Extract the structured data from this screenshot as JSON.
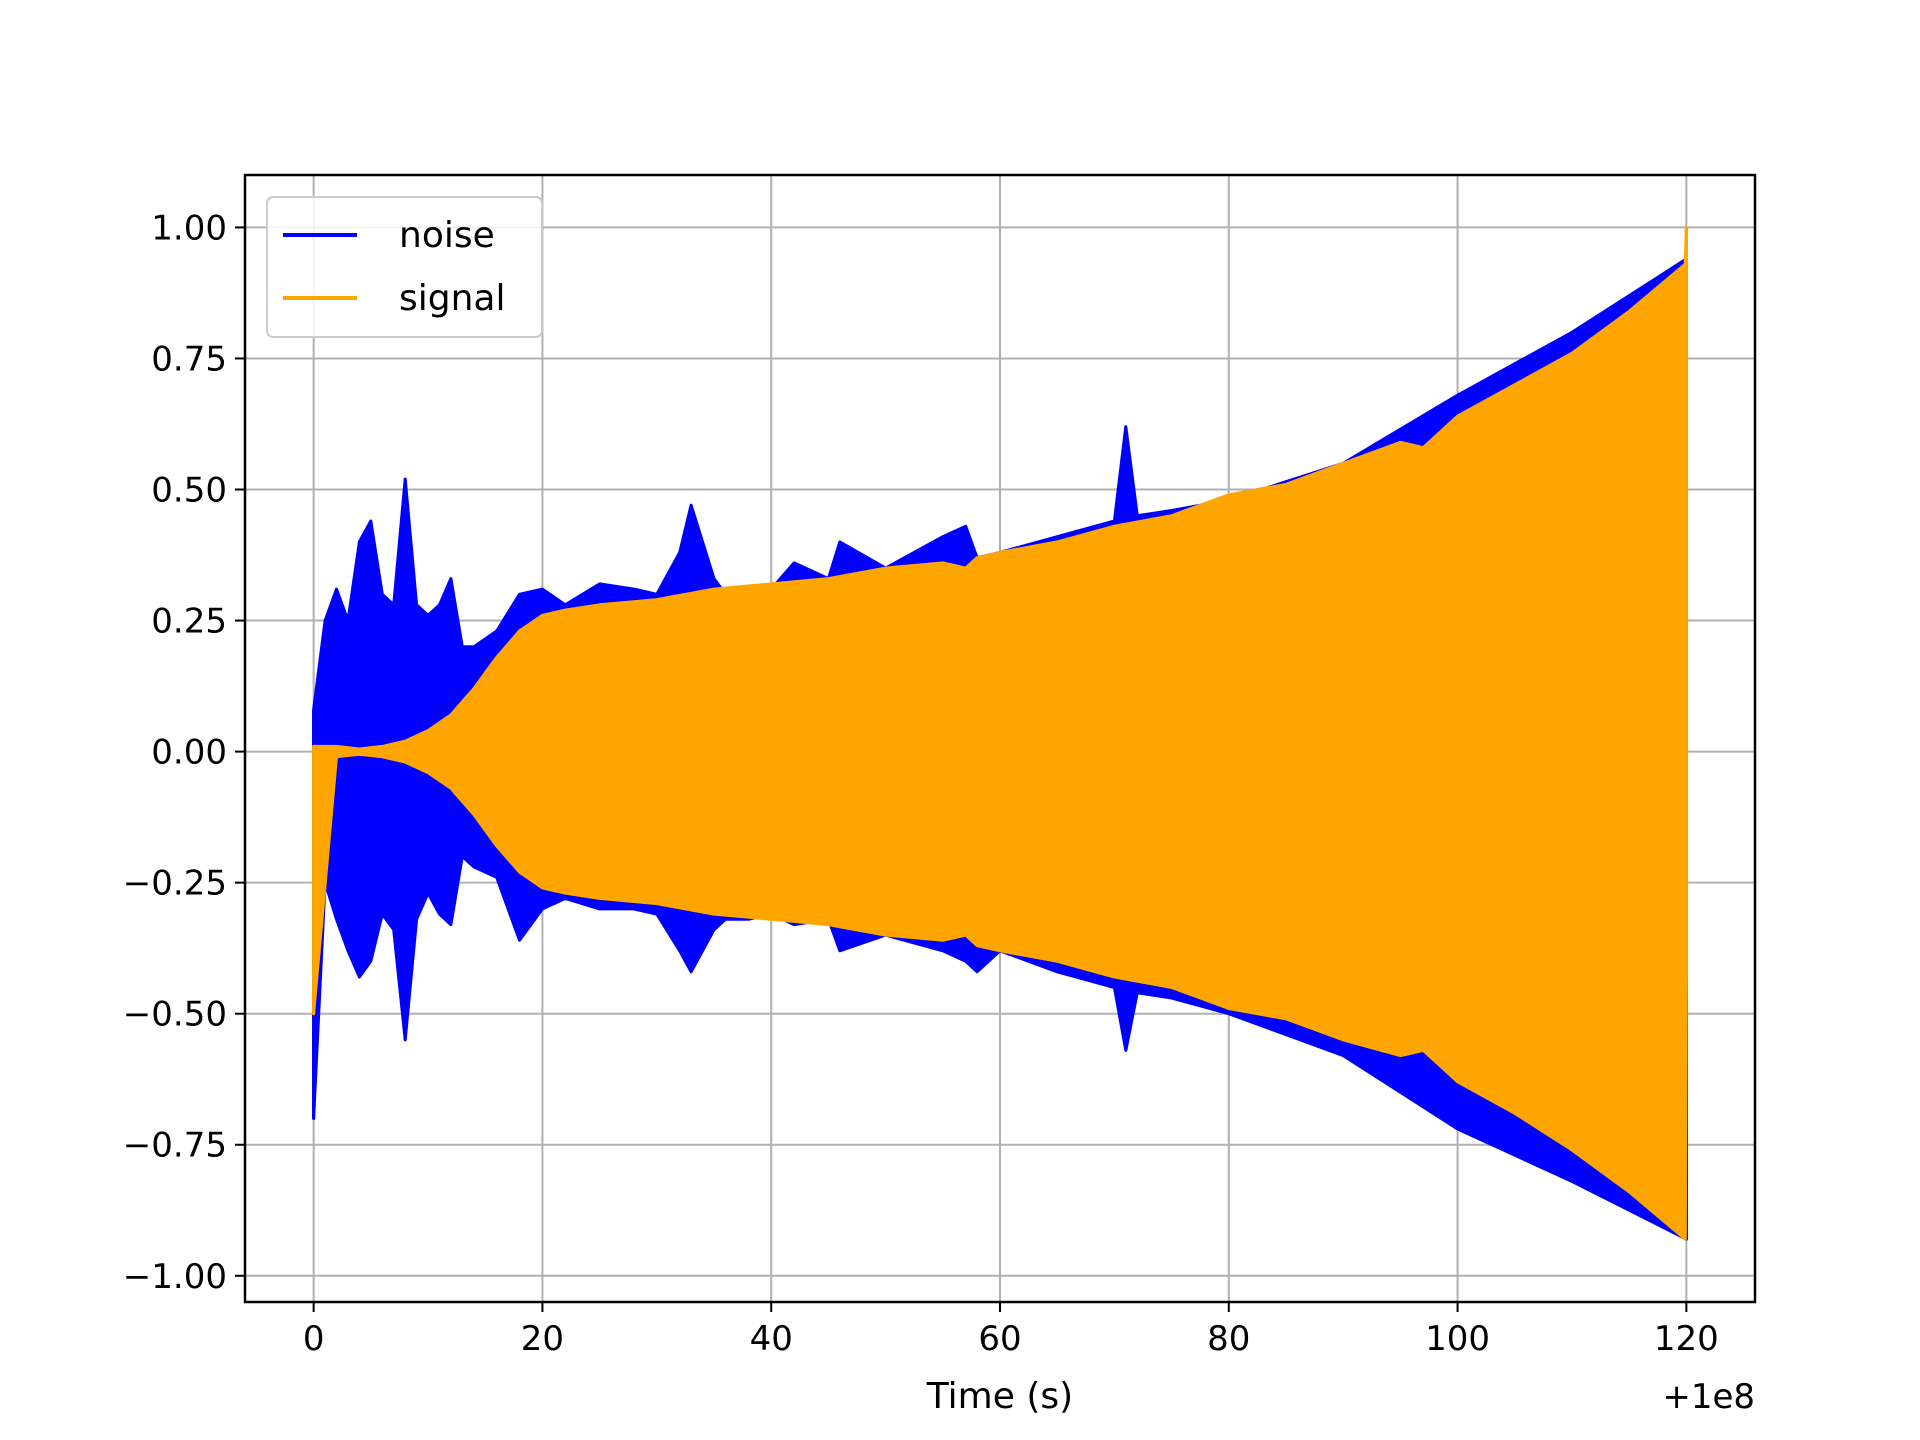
{
  "chart_data": {
    "type": "line",
    "xlabel": "Time (s)",
    "ylabel": "",
    "x_offset_label": "+1e8",
    "xlim": [
      -6,
      126
    ],
    "ylim": [
      -1.05,
      1.1
    ],
    "xticks": [
      0,
      20,
      40,
      60,
      80,
      100,
      120
    ],
    "xtick_labels": [
      "0",
      "20",
      "40",
      "60",
      "80",
      "100",
      "120"
    ],
    "yticks": [
      1.0,
      0.75,
      0.5,
      0.25,
      0.0,
      -0.25,
      -0.5,
      -0.75,
      -1.0
    ],
    "ytick_labels": [
      "1.00",
      "0.75",
      "0.50",
      "0.25",
      "0.00",
      "−0.25",
      "−0.50",
      "−0.75",
      "−1.00"
    ],
    "grid": true,
    "legend_position": "top-left",
    "series": [
      {
        "name": "noise",
        "color": "#0000ff",
        "envelope": {
          "x": [
            0,
            1,
            2,
            3,
            4,
            5,
            6,
            7,
            8,
            9,
            10,
            11,
            12,
            13,
            14,
            16,
            18,
            20,
            22,
            25,
            28,
            30,
            32,
            33,
            35,
            36,
            38,
            40,
            42,
            45,
            46,
            50,
            55,
            57,
            58,
            60,
            65,
            70,
            71,
            72,
            75,
            80,
            90,
            100,
            110,
            120
          ],
          "upper": [
            0.08,
            0.25,
            0.31,
            0.25,
            0.4,
            0.44,
            0.3,
            0.28,
            0.52,
            0.28,
            0.26,
            0.28,
            0.33,
            0.2,
            0.2,
            0.23,
            0.3,
            0.31,
            0.28,
            0.32,
            0.31,
            0.3,
            0.38,
            0.47,
            0.33,
            0.3,
            0.31,
            0.31,
            0.36,
            0.33,
            0.4,
            0.35,
            0.41,
            0.43,
            0.37,
            0.38,
            0.41,
            0.44,
            0.62,
            0.45,
            0.46,
            0.48,
            0.55,
            0.68,
            0.8,
            0.94
          ],
          "lower": [
            -0.7,
            -0.25,
            -0.32,
            -0.38,
            -0.43,
            -0.4,
            -0.31,
            -0.34,
            -0.55,
            -0.32,
            -0.27,
            -0.31,
            -0.33,
            -0.2,
            -0.22,
            -0.24,
            -0.36,
            -0.3,
            -0.28,
            -0.3,
            -0.3,
            -0.31,
            -0.38,
            -0.42,
            -0.34,
            -0.32,
            -0.32,
            -0.31,
            -0.33,
            -0.32,
            -0.38,
            -0.35,
            -0.38,
            -0.4,
            -0.42,
            -0.38,
            -0.42,
            -0.45,
            -0.57,
            -0.46,
            -0.47,
            -0.5,
            -0.58,
            -0.72,
            -0.82,
            -0.93
          ]
        }
      },
      {
        "name": "signal",
        "color": "#ffa500",
        "envelope": {
          "x": [
            0,
            2,
            4,
            6,
            8,
            10,
            12,
            14,
            16,
            18,
            20,
            22,
            25,
            30,
            35,
            40,
            45,
            50,
            55,
            57,
            58,
            60,
            65,
            70,
            75,
            80,
            85,
            90,
            95,
            97,
            100,
            105,
            110,
            115,
            119.9,
            120
          ],
          "upper": [
            0.01,
            0.01,
            0.005,
            0.01,
            0.02,
            0.04,
            0.07,
            0.12,
            0.18,
            0.23,
            0.26,
            0.27,
            0.28,
            0.29,
            0.31,
            0.32,
            0.33,
            0.35,
            0.36,
            0.35,
            0.37,
            0.38,
            0.4,
            0.43,
            0.45,
            0.49,
            0.51,
            0.55,
            0.59,
            0.58,
            0.64,
            0.7,
            0.76,
            0.84,
            0.93,
            1.0
          ],
          "lower": [
            -0.5,
            -0.01,
            -0.005,
            -0.01,
            -0.02,
            -0.04,
            -0.07,
            -0.12,
            -0.18,
            -0.23,
            -0.26,
            -0.27,
            -0.28,
            -0.29,
            -0.31,
            -0.32,
            -0.33,
            -0.35,
            -0.36,
            -0.35,
            -0.37,
            -0.38,
            -0.4,
            -0.43,
            -0.45,
            -0.49,
            -0.51,
            -0.55,
            -0.58,
            -0.57,
            -0.63,
            -0.69,
            -0.76,
            -0.84,
            -0.93,
            -0.43
          ]
        }
      }
    ]
  }
}
